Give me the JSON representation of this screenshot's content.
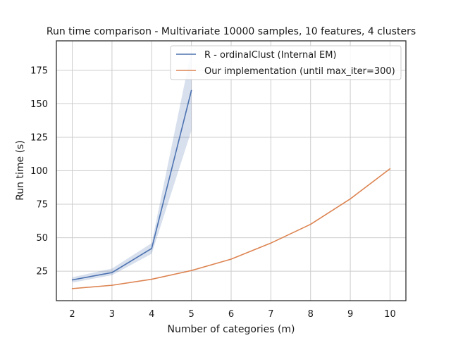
{
  "chart_data": {
    "type": "line",
    "title": "Run time comparison - Multivariate 10000 samples, 10 features, 4 clusters",
    "xlabel": "Number of categories (m)",
    "ylabel": "Run time (s)",
    "xlim": [
      1.6,
      10.4
    ],
    "ylim": [
      3,
      197
    ],
    "xticks": [
      2,
      3,
      4,
      5,
      6,
      7,
      8,
      9,
      10
    ],
    "yticks": [
      25,
      50,
      75,
      100,
      125,
      150,
      175
    ],
    "grid": true,
    "legend_position": "upper-right",
    "series": [
      {
        "name": "R - ordinalClust (Internal EM)",
        "color": "#4c72b0",
        "band_color": "#4c72b0",
        "x": [
          2,
          3,
          4,
          5
        ],
        "y": [
          18.5,
          24,
          42,
          160
        ],
        "lower": [
          16.5,
          22,
          38,
          130
        ],
        "upper": [
          20.5,
          27,
          46,
          190
        ]
      },
      {
        "name": "Our implementation (until max_iter=300)",
        "color": "#dd8452",
        "x": [
          2,
          3,
          4,
          5,
          6,
          7,
          8,
          9,
          10
        ],
        "y": [
          12,
          14.5,
          19,
          25.5,
          34,
          46,
          60,
          79,
          101.5
        ]
      }
    ]
  }
}
